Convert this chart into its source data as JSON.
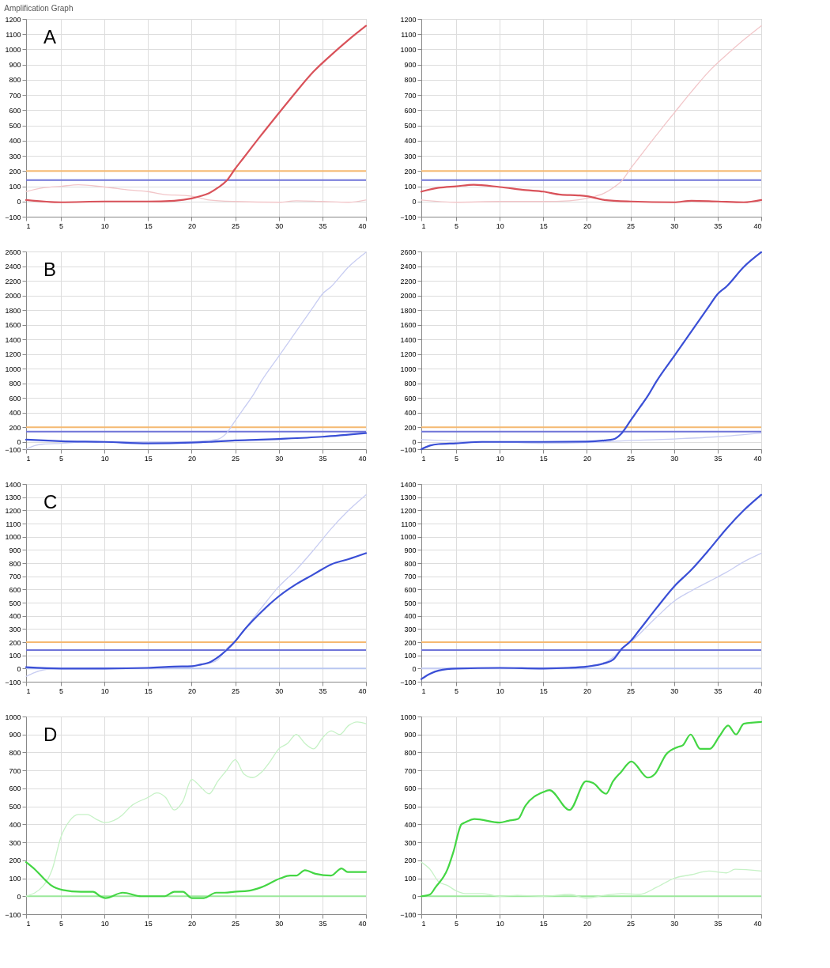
{
  "chart_data": [
    {
      "type": "line",
      "title": "Amplification Graph",
      "annotations": [
        "A"
      ],
      "xlim": [
        1,
        40
      ],
      "xticks": [
        1,
        5,
        10,
        15,
        20,
        25,
        30,
        35,
        40
      ],
      "ylim": [
        -100,
        1200
      ],
      "yticks": [
        -100,
        0,
        100,
        200,
        300,
        400,
        500,
        600,
        700,
        800,
        900,
        1000,
        1100,
        1200
      ],
      "grid": true,
      "series": [
        {
          "color": "#d9525a",
          "x": [
            1,
            5,
            10,
            15,
            18,
            20,
            21,
            22,
            23,
            24,
            25,
            26,
            27,
            28,
            29,
            30,
            32,
            34,
            36,
            38,
            40
          ],
          "values": [
            10,
            -5,
            0,
            0,
            5,
            20,
            35,
            55,
            90,
            136,
            216,
            290,
            365,
            438,
            510,
            581,
            722,
            855,
            963,
            1063,
            1155
          ]
        },
        {
          "color": "#f2c6c9",
          "x": [
            1,
            3,
            5,
            7,
            10,
            13,
            15,
            17,
            19,
            20,
            22,
            25,
            30,
            32,
            35,
            38,
            40
          ],
          "values": [
            65,
            90,
            100,
            110,
            95,
            75,
            65,
            45,
            40,
            35,
            10,
            0,
            -5,
            5,
            0,
            -5,
            10
          ]
        }
      ],
      "ref_lines": [
        {
          "axis": "y",
          "value": 200,
          "color": "#f5b971"
        },
        {
          "axis": "y",
          "value": 140,
          "color": "#6f74d8"
        }
      ]
    },
    {
      "type": "line",
      "xlim": [
        1,
        40
      ],
      "xticks": [
        1,
        5,
        10,
        15,
        20,
        25,
        30,
        35,
        40
      ],
      "ylim": [
        -100,
        1200
      ],
      "yticks": [
        -100,
        0,
        100,
        200,
        300,
        400,
        500,
        600,
        700,
        800,
        900,
        1000,
        1100,
        1200
      ],
      "grid": true,
      "series": [
        {
          "color": "#d9525a",
          "x": [
            1,
            3,
            5,
            7,
            10,
            13,
            15,
            17,
            19,
            20,
            22,
            25,
            30,
            32,
            35,
            38,
            40
          ],
          "values": [
            65,
            90,
            100,
            110,
            95,
            75,
            65,
            45,
            40,
            35,
            10,
            0,
            -5,
            5,
            0,
            -5,
            10
          ]
        },
        {
          "color": "#f2c6c9",
          "x": [
            1,
            5,
            10,
            15,
            18,
            20,
            21,
            22,
            23,
            24,
            25,
            26,
            27,
            28,
            29,
            30,
            32,
            34,
            36,
            38,
            40
          ],
          "values": [
            10,
            -5,
            0,
            0,
            5,
            20,
            35,
            55,
            90,
            136,
            216,
            290,
            365,
            438,
            510,
            581,
            722,
            855,
            963,
            1063,
            1155
          ]
        }
      ],
      "ref_lines": [
        {
          "axis": "y",
          "value": 200,
          "color": "#f5b971"
        },
        {
          "axis": "y",
          "value": 140,
          "color": "#6f74d8"
        }
      ]
    },
    {
      "type": "line",
      "annotations": [
        "B"
      ],
      "xlim": [
        1,
        40
      ],
      "xticks": [
        1,
        5,
        10,
        15,
        20,
        25,
        30,
        35,
        40
      ],
      "ylim": [
        -100,
        2600
      ],
      "yticks": [
        -100,
        0,
        200,
        400,
        600,
        800,
        1000,
        1200,
        1400,
        1600,
        1800,
        2000,
        2200,
        2400,
        2600
      ],
      "grid": true,
      "series": [
        {
          "color": "#3a4fd6",
          "x": [
            1,
            3,
            5,
            10,
            15,
            20,
            22,
            25,
            28,
            30,
            35,
            40
          ],
          "values": [
            30,
            20,
            10,
            0,
            -20,
            -10,
            0,
            20,
            30,
            40,
            70,
            120
          ]
        },
        {
          "color": "#c8cdf2",
          "x": [
            1,
            2,
            3,
            5,
            8,
            10,
            15,
            20,
            22,
            23,
            24,
            25,
            26,
            27,
            28,
            30,
            32,
            34,
            35,
            36,
            38,
            40
          ],
          "values": [
            -100,
            -50,
            -30,
            -20,
            0,
            0,
            0,
            5,
            20,
            35,
            120,
            290,
            460,
            630,
            830,
            1170,
            1510,
            1850,
            2020,
            2120,
            2390,
            2590
          ]
        }
      ],
      "ref_lines": [
        {
          "axis": "y",
          "value": 200,
          "color": "#f5b971"
        },
        {
          "axis": "y",
          "value": 140,
          "color": "#6f74d8"
        }
      ]
    },
    {
      "type": "line",
      "xlim": [
        1,
        40
      ],
      "xticks": [
        1,
        5,
        10,
        15,
        20,
        25,
        30,
        35,
        40
      ],
      "ylim": [
        -100,
        2600
      ],
      "yticks": [
        -100,
        0,
        200,
        400,
        600,
        800,
        1000,
        1200,
        1400,
        1600,
        1800,
        2000,
        2200,
        2400,
        2600
      ],
      "grid": true,
      "series": [
        {
          "color": "#3a4fd6",
          "x": [
            1,
            2,
            3,
            5,
            8,
            10,
            15,
            20,
            22,
            23,
            24,
            25,
            26,
            27,
            28,
            30,
            32,
            34,
            35,
            36,
            38,
            40
          ],
          "values": [
            -100,
            -50,
            -30,
            -20,
            0,
            0,
            0,
            5,
            20,
            35,
            120,
            290,
            460,
            630,
            830,
            1170,
            1510,
            1850,
            2020,
            2120,
            2390,
            2590
          ]
        },
        {
          "color": "#c8cdf2",
          "x": [
            1,
            3,
            5,
            10,
            15,
            20,
            22,
            25,
            28,
            30,
            35,
            40
          ],
          "values": [
            30,
            20,
            10,
            0,
            -20,
            -10,
            0,
            20,
            30,
            40,
            70,
            120
          ]
        }
      ],
      "ref_lines": [
        {
          "axis": "y",
          "value": 200,
          "color": "#f5b971"
        },
        {
          "axis": "y",
          "value": 140,
          "color": "#6f74d8"
        }
      ]
    },
    {
      "type": "line",
      "annotations": [
        "C"
      ],
      "xlim": [
        1,
        40
      ],
      "xticks": [
        1,
        5,
        10,
        15,
        20,
        25,
        30,
        35,
        40
      ],
      "ylim": [
        -100,
        1400
      ],
      "yticks": [
        -100,
        0,
        100,
        200,
        300,
        400,
        500,
        600,
        700,
        800,
        900,
        1000,
        1100,
        1200,
        1300,
        1400
      ],
      "grid": true,
      "series": [
        {
          "color": "#3a4fd6",
          "x": [
            1,
            5,
            10,
            15,
            18,
            20,
            21,
            22,
            23,
            24,
            25,
            26,
            27,
            28,
            30,
            32,
            34,
            36,
            38,
            40
          ],
          "values": [
            10,
            0,
            0,
            5,
            15,
            18,
            30,
            45,
            85,
            140,
            207,
            290,
            363,
            430,
            548,
            640,
            715,
            790,
            830,
            875
          ]
        },
        {
          "color": "#c8cdf2",
          "x": [
            1,
            2,
            3,
            5,
            10,
            15,
            18,
            20,
            22,
            23,
            24,
            25,
            26,
            28,
            30,
            32,
            34,
            36,
            38,
            40
          ],
          "values": [
            -60,
            -30,
            -10,
            0,
            5,
            0,
            5,
            15,
            40,
            67,
            150,
            207,
            290,
            460,
            622,
            750,
            900,
            1060,
            1200,
            1318
          ]
        }
      ],
      "ref_lines": [
        {
          "axis": "y",
          "value": 200,
          "color": "#f5b971"
        },
        {
          "axis": "y",
          "value": 140,
          "color": "#6f74d8"
        },
        {
          "axis": "y",
          "value": 0,
          "color": "#b9c6f0"
        }
      ]
    },
    {
      "type": "line",
      "xlim": [
        1,
        40
      ],
      "xticks": [
        1,
        5,
        10,
        15,
        20,
        25,
        30,
        35,
        40
      ],
      "ylim": [
        -100,
        1400
      ],
      "yticks": [
        -100,
        0,
        100,
        200,
        300,
        400,
        500,
        600,
        700,
        800,
        900,
        1000,
        1100,
        1200,
        1300,
        1400
      ],
      "grid": true,
      "series": [
        {
          "color": "#3a4fd6",
          "x": [
            1,
            2,
            3,
            5,
            10,
            15,
            18,
            20,
            22,
            23,
            24,
            25,
            26,
            28,
            30,
            32,
            34,
            36,
            38,
            40
          ],
          "values": [
            -80,
            -40,
            -15,
            0,
            5,
            0,
            5,
            15,
            40,
            67,
            150,
            207,
            290,
            460,
            622,
            750,
            900,
            1060,
            1200,
            1318
          ]
        },
        {
          "color": "#c8cdf2",
          "x": [
            1,
            5,
            10,
            15,
            20,
            22,
            23,
            24,
            25,
            28,
            30,
            32,
            34,
            36,
            38,
            40
          ],
          "values": [
            0,
            0,
            0,
            5,
            18,
            45,
            85,
            150,
            200,
            390,
            511,
            590,
            660,
            730,
            810,
            874
          ]
        }
      ],
      "ref_lines": [
        {
          "axis": "y",
          "value": 200,
          "color": "#f5b971"
        },
        {
          "axis": "y",
          "value": 140,
          "color": "#6f74d8"
        },
        {
          "axis": "y",
          "value": 0,
          "color": "#b9c6f0"
        }
      ]
    },
    {
      "type": "line",
      "annotations": [
        "D"
      ],
      "xlim": [
        1,
        40
      ],
      "xticks": [
        1,
        5,
        10,
        15,
        20,
        25,
        30,
        35,
        40
      ],
      "ylim": [
        -100,
        1000
      ],
      "yticks": [
        -100,
        0,
        100,
        200,
        300,
        400,
        500,
        600,
        700,
        800,
        900,
        1000
      ],
      "grid": true,
      "series": [
        {
          "color": "#44d644",
          "x": [
            1,
            2,
            3,
            3.9,
            5.2,
            7.3,
            8.7,
            9.5,
            10.1,
            12.1,
            14.2,
            16.9,
            18,
            19,
            20,
            21.4,
            22.8,
            23.8,
            24.9,
            26.5,
            28,
            30.2,
            31.3,
            32,
            33,
            34.2,
            36,
            37.2,
            37.9,
            40
          ],
          "values": [
            190,
            150,
            100,
            60,
            35,
            25,
            25,
            0,
            -10,
            20,
            0,
            0,
            25,
            25,
            -10,
            -10,
            20,
            20,
            25,
            30,
            50,
            100,
            115,
            115,
            145,
            125,
            115,
            155,
            135,
            135
          ]
        },
        {
          "color": "#c6f2c6",
          "x": [
            1,
            3,
            4,
            5,
            6,
            7,
            8,
            9,
            10,
            12,
            13,
            15,
            16,
            17,
            18,
            19,
            20,
            21,
            22,
            23,
            24,
            25,
            26,
            27,
            28,
            29,
            30,
            31,
            32,
            33,
            34,
            35,
            36,
            37,
            38,
            39,
            40
          ],
          "values": [
            0,
            60,
            150,
            330,
            420,
            455,
            455,
            430,
            410,
            450,
            500,
            550,
            575,
            550,
            480,
            530,
            650,
            610,
            570,
            640,
            700,
            760,
            680,
            660,
            690,
            750,
            820,
            850,
            900,
            850,
            820,
            880,
            920,
            900,
            950,
            970,
            960
          ]
        }
      ],
      "ref_lines": [
        {
          "axis": "y",
          "value": 0,
          "color": "#9be89b"
        }
      ]
    },
    {
      "type": "line",
      "xlim": [
        1,
        40
      ],
      "xticks": [
        1,
        5,
        10,
        15,
        20,
        25,
        30,
        35,
        40
      ],
      "ylim": [
        -100,
        1000
      ],
      "yticks": [
        -100,
        0,
        100,
        200,
        300,
        400,
        500,
        600,
        700,
        800,
        900,
        1000
      ],
      "grid": true,
      "series": [
        {
          "color": "#44d644",
          "x": [
            1,
            2,
            2.6,
            4,
            4.7,
            5.6,
            6,
            7.1,
            10,
            11,
            12.1,
            12.9,
            15,
            15.7,
            18,
            19.9,
            20.7,
            22.2,
            23,
            23.9,
            25.1,
            27,
            27.8,
            29.1,
            30.4,
            31,
            31.9,
            33,
            34.1,
            35.2,
            36.2,
            37.1,
            38,
            40
          ],
          "values": [
            0,
            10,
            48,
            150,
            250,
            400,
            410,
            430,
            410,
            420,
            430,
            500,
            580,
            590,
            480,
            640,
            630,
            570,
            640,
            690,
            750,
            660,
            680,
            790,
            830,
            840,
            900,
            820,
            820,
            890,
            950,
            900,
            960,
            970
          ]
        },
        {
          "color": "#c6f2c6",
          "x": [
            1,
            2,
            3,
            4,
            5,
            6,
            8,
            10,
            12,
            15,
            18,
            20,
            22,
            24,
            26,
            28,
            30,
            32,
            34,
            36,
            37,
            40
          ],
          "values": [
            190,
            150,
            80,
            60,
            30,
            15,
            15,
            0,
            5,
            0,
            10,
            -10,
            5,
            15,
            10,
            50,
            100,
            120,
            140,
            130,
            150,
            140
          ]
        }
      ],
      "ref_lines": [
        {
          "axis": "y",
          "value": 0,
          "color": "#9be89b"
        }
      ]
    }
  ]
}
